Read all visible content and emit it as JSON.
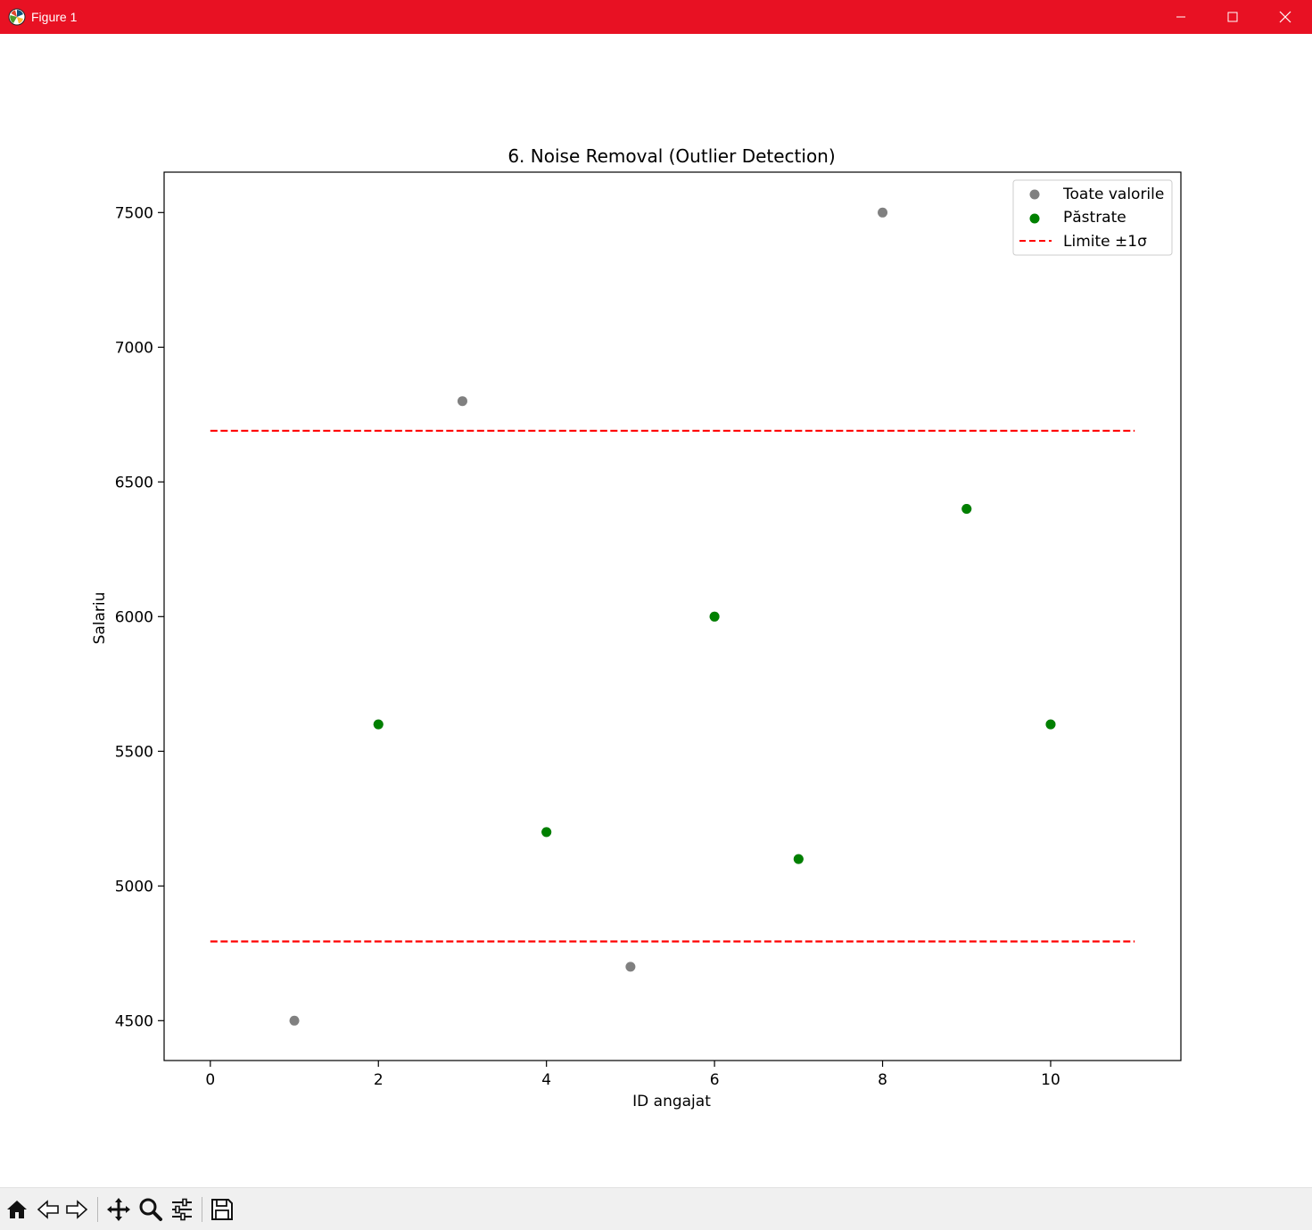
{
  "window": {
    "title": "Figure 1",
    "controls": [
      "minimize-icon",
      "maximize-icon",
      "close-icon"
    ],
    "titlebar_color": "#e81123"
  },
  "toolbar": {
    "tools": [
      "home-icon",
      "back-arrow-icon",
      "forward-arrow-icon",
      "pan-move-icon",
      "zoom-magnifier-icon",
      "configure-subplots-icon",
      "save-floppy-icon"
    ]
  },
  "chart_data": {
    "type": "scatter",
    "title": "6. Noise Removal (Outlier Detection)",
    "xlabel": "ID angajat",
    "ylabel": "Salariu",
    "xlim": [
      -0.55,
      11.55
    ],
    "ylim": [
      4352,
      7650
    ],
    "xticks": [
      0,
      2,
      4,
      6,
      8,
      10
    ],
    "yticks": [
      4500,
      5000,
      5500,
      6000,
      6500,
      7000,
      7500
    ],
    "grid": false,
    "legend_position": "upper right",
    "series": [
      {
        "name": "Toate valorile",
        "kind": "scatter",
        "color": "#808080",
        "points": [
          [
            1,
            4500
          ],
          [
            2,
            5600
          ],
          [
            3,
            6800
          ],
          [
            4,
            5200
          ],
          [
            5,
            4700
          ],
          [
            6,
            6000
          ],
          [
            7,
            5100
          ],
          [
            8,
            7500
          ],
          [
            9,
            6400
          ],
          [
            10,
            5600
          ]
        ]
      },
      {
        "name": "Păstrate",
        "kind": "scatter",
        "color": "#008000",
        "points": [
          [
            2,
            5600
          ],
          [
            4,
            5200
          ],
          [
            6,
            6000
          ],
          [
            7,
            5100
          ],
          [
            9,
            6400
          ],
          [
            10,
            5600
          ]
        ]
      },
      {
        "name": "Limite ±1σ",
        "kind": "hline",
        "color": "#ff0000",
        "style": "dashed",
        "x_range": [
          0,
          11
        ],
        "values": [
          6690,
          4794
        ]
      }
    ]
  }
}
